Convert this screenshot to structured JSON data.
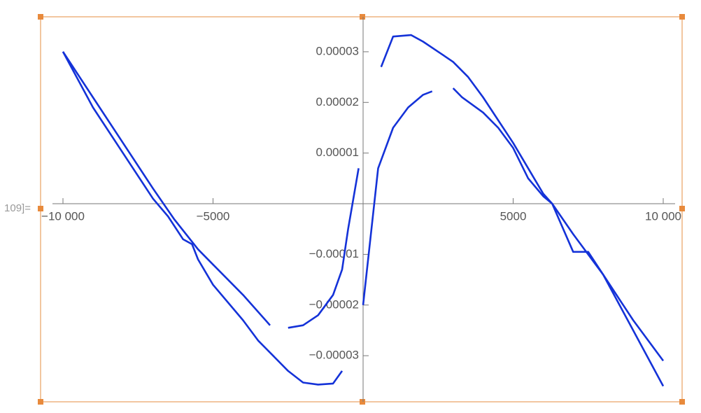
{
  "cell_label": "109]=",
  "chart_data": {
    "type": "line",
    "xlim": [
      -10746,
      10629
    ],
    "ylim": [
      -3.91e-05,
      3.69e-05
    ],
    "xticks": [
      {
        "value": -10000,
        "label": "−10 000"
      },
      {
        "value": -5000,
        "label": "−5000"
      },
      5000,
      {
        "value": 10000,
        "label": "10 000"
      }
    ],
    "yticks": [
      {
        "value": -3e-05,
        "label": "−0.00003"
      },
      {
        "value": -2e-05,
        "label": "−0.00002"
      },
      {
        "value": -1e-05,
        "label": "−0.00001"
      },
      1e-05,
      2e-05,
      3e-05
    ],
    "series": [
      {
        "color": "#1432d8",
        "x": [
          -10000,
          -9000,
          -8000,
          -7000,
          -6300,
          -5500,
          -5000,
          -4000,
          -3100,
          null,
          -2500,
          -2000,
          -1500,
          -1000,
          -700,
          -500,
          -150,
          null,
          0,
          500,
          1000,
          1500,
          2000,
          2300,
          null,
          3000,
          3300,
          4000,
          4500,
          5000,
          5500,
          6000,
          6300,
          7000,
          8000,
          9000,
          10000
        ],
        "values": [
          3e-05,
          2.1e-05,
          1.2e-05,
          3e-06,
          -3e-06,
          -9e-06,
          -1.2e-05,
          -1.8e-05,
          -2.4e-05,
          null,
          -2.45e-05,
          -2.4e-05,
          -2.2e-05,
          -1.8e-05,
          -1.3e-05,
          -5e-06,
          7e-06,
          null,
          -2e-05,
          7e-06,
          1.5e-05,
          1.9e-05,
          2.15e-05,
          2.22e-05,
          null,
          2.28e-05,
          2.1e-05,
          1.8e-05,
          1.5e-05,
          1.1e-05,
          5e-06,
          1.5e-06,
          0,
          -6e-06,
          -1.4e-05,
          -2.3e-05,
          -3.1e-05
        ]
      },
      {
        "color": "#1432d8",
        "x": [
          -10000,
          -9000,
          -8000,
          -7000,
          -6500,
          -6000,
          -5700,
          -5500,
          -5000,
          -4000,
          -3500,
          -3000,
          -2500,
          -2000,
          -1500,
          -1000,
          -700,
          null,
          600,
          1000,
          1600,
          2000,
          2500,
          3000,
          3500,
          4000,
          5000,
          6000,
          6300,
          7000,
          7500,
          8000,
          9000,
          10000
        ],
        "values": [
          3e-05,
          1.9e-05,
          1e-05,
          1e-06,
          -2.5e-06,
          -7e-06,
          -8e-06,
          -1.1e-05,
          -1.6e-05,
          -2.3e-05,
          -2.7e-05,
          -3e-05,
          -3.3e-05,
          -3.53e-05,
          -3.57e-05,
          -3.55e-05,
          -3.3e-05,
          null,
          2.7e-05,
          3.3e-05,
          3.33e-05,
          3.2e-05,
          3e-05,
          2.8e-05,
          2.5e-05,
          2.1e-05,
          1.2e-05,
          2e-06,
          0,
          -9.5e-06,
          -9.5e-06,
          -1.4e-05,
          -2.5e-05,
          -3.6e-05
        ]
      }
    ]
  }
}
